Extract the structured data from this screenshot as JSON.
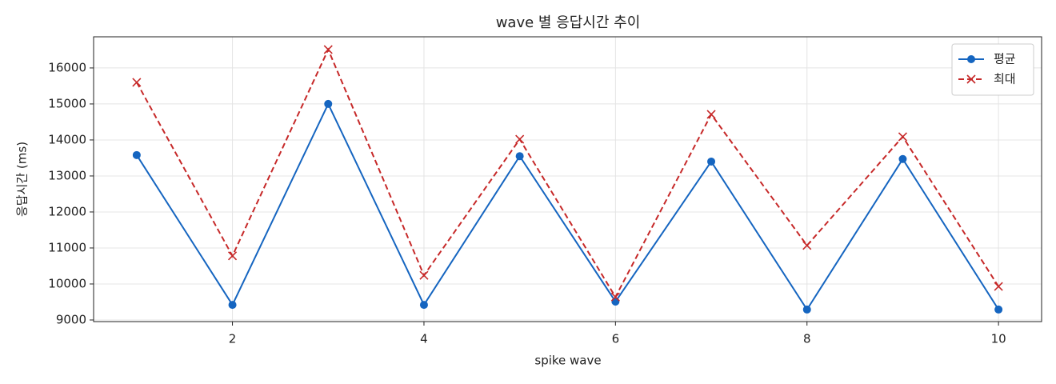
{
  "chart_data": {
    "type": "line",
    "title": "wave 별 응답시간 추이",
    "xlabel": "spike wave",
    "ylabel": "응답시간 (ms)",
    "x": [
      1,
      2,
      3,
      4,
      5,
      6,
      7,
      8,
      9,
      10
    ],
    "series": [
      {
        "name": "평균",
        "color": "#1565c0",
        "marker": "o",
        "linestyle": "solid",
        "values": [
          13580,
          9420,
          15000,
          9420,
          13550,
          9510,
          13400,
          9290,
          13470,
          9290
        ]
      },
      {
        "name": "최대",
        "color": "#c62828",
        "marker": "x",
        "linestyle": "dashed",
        "values": [
          15600,
          10780,
          16510,
          10240,
          14020,
          9640,
          14710,
          11070,
          14090,
          9930
        ]
      }
    ],
    "xlim": [
      0.55,
      10.45
    ],
    "xticks": [
      2,
      4,
      6,
      8,
      10
    ],
    "ylim": [
      8955,
      16865
    ],
    "yticks": [
      9000,
      10000,
      11000,
      12000,
      13000,
      14000,
      15000,
      16000
    ],
    "grid": true,
    "legend": "upper right"
  }
}
